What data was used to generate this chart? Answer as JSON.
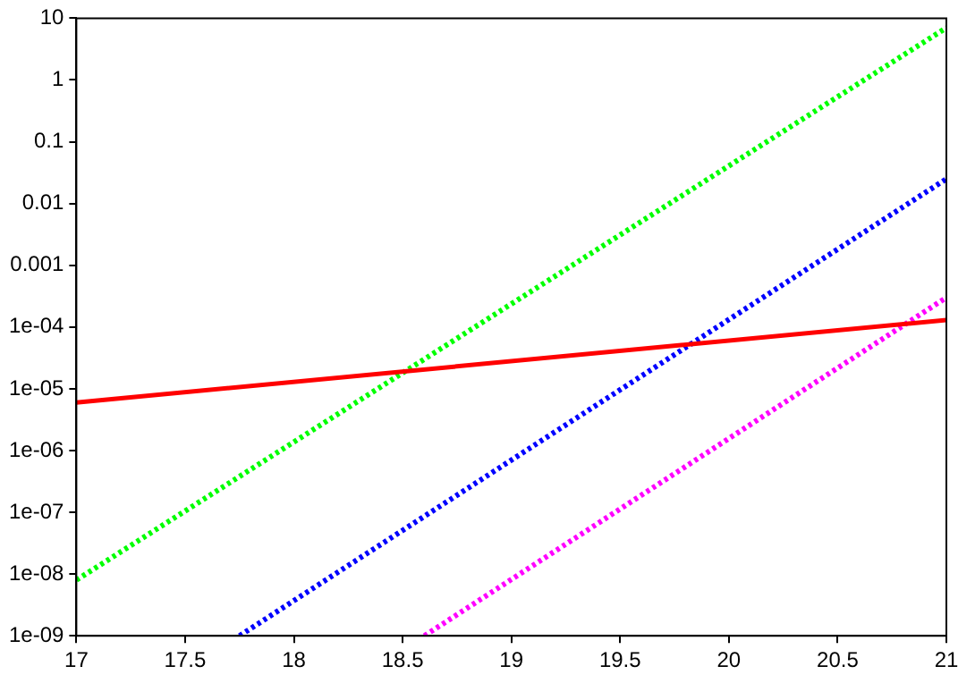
{
  "chart_data": {
    "type": "line",
    "log": "y",
    "grid": false,
    "legend": false,
    "marker": "none",
    "xlim": [
      17,
      21
    ],
    "xticks": [
      17,
      17.5,
      18,
      18.5,
      19,
      19.5,
      20,
      20.5,
      21
    ],
    "ylim": [
      1e-09,
      10
    ],
    "yticks": [
      10,
      1,
      0.1,
      0.01,
      0.001,
      {
        "value": 0.0001,
        "label": "1e-04"
      },
      {
        "value": 1e-05,
        "label": "1e-05"
      },
      {
        "value": 1e-06,
        "label": "1e-06"
      },
      {
        "value": 1e-07,
        "label": "1e-07"
      },
      {
        "value": 1e-08,
        "label": "1e-08"
      },
      {
        "value": 1e-09,
        "label": "1e-09"
      }
    ],
    "series": [
      {
        "color": "#ff0000",
        "line_style": "solid",
        "x": [
          17,
          21
        ],
        "values": [
          6e-06,
          0.00013
        ]
      },
      {
        "color": "#00ff00",
        "line_style": "dotted",
        "x": [
          17,
          21
        ],
        "values": [
          8e-09,
          7
        ]
      },
      {
        "color": "#0000ff",
        "line_style": "dotted",
        "x": [
          17.75,
          21
        ],
        "values": [
          1e-09,
          0.025
        ]
      },
      {
        "color": "#ff00ff",
        "line_style": "dotted",
        "x": [
          18.6,
          21
        ],
        "values": [
          1e-09,
          0.0003
        ]
      }
    ]
  }
}
